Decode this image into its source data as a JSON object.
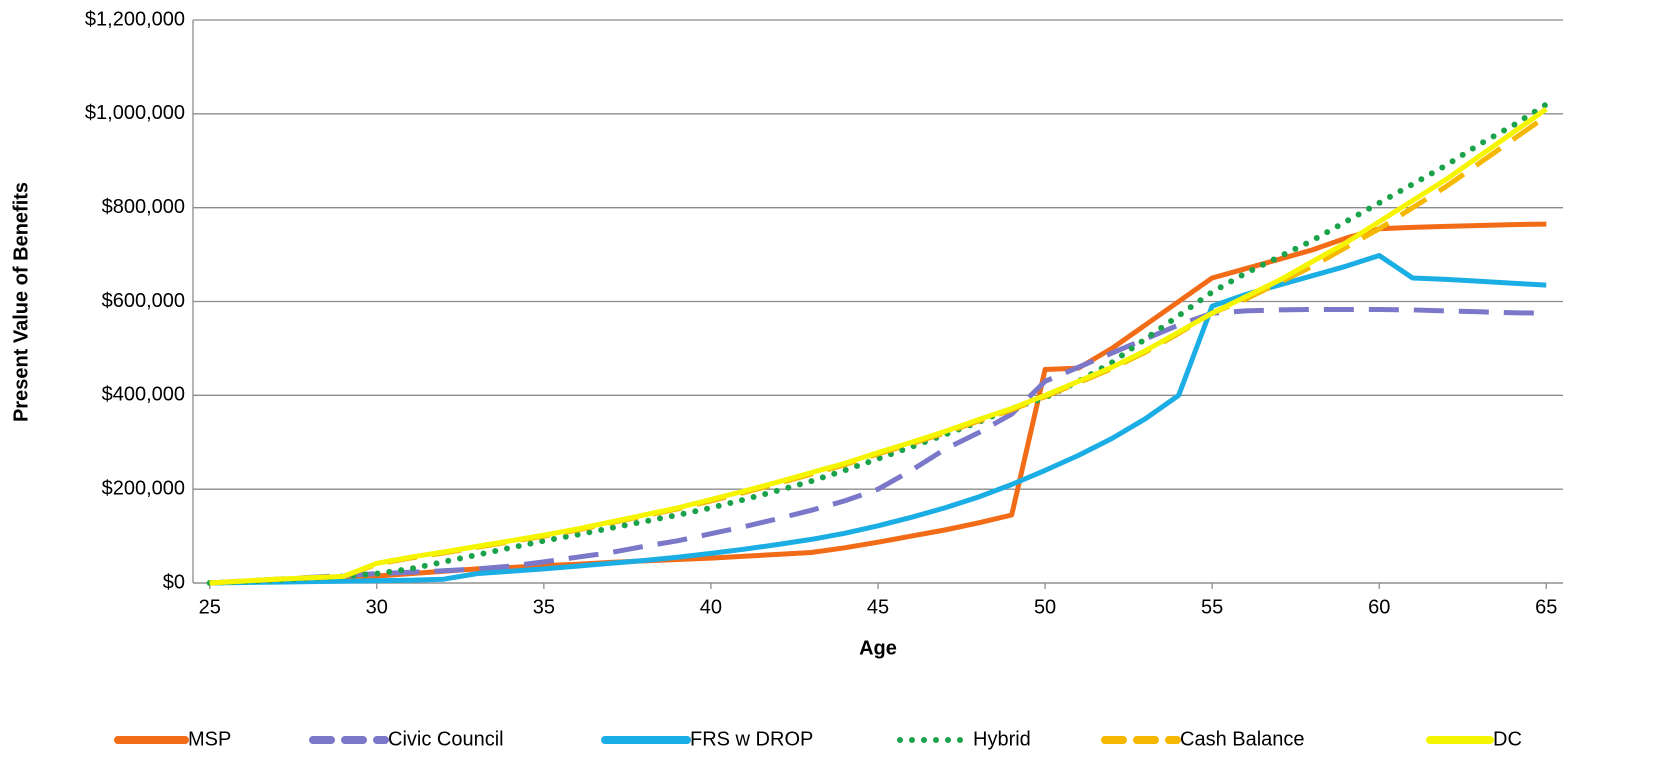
{
  "chart_data": {
    "type": "line",
    "x_label": "Age",
    "y_label": "Present Value of Benefits",
    "x": [
      25,
      26,
      27,
      28,
      29,
      30,
      31,
      32,
      33,
      34,
      35,
      36,
      37,
      38,
      39,
      40,
      41,
      42,
      43,
      44,
      45,
      46,
      47,
      48,
      49,
      50,
      51,
      52,
      53,
      54,
      55,
      56,
      57,
      58,
      59,
      60,
      61,
      62,
      63,
      64,
      65
    ],
    "xlim": [
      24.5,
      65.5
    ],
    "xticks": [
      25,
      30,
      35,
      40,
      45,
      50,
      55,
      60,
      65
    ],
    "ylim": [
      0,
      1200000
    ],
    "yticks": [
      {
        "value": 0,
        "label": "$0"
      },
      {
        "value": 200000,
        "label": "$200,000"
      },
      {
        "value": 400000,
        "label": "$400,000"
      },
      {
        "value": 600000,
        "label": "$600,000"
      },
      {
        "value": 800000,
        "label": "$800,000"
      },
      {
        "value": 1000000,
        "label": "$1,000,000"
      },
      {
        "value": 1200000,
        "label": "$1,200,000"
      }
    ],
    "grid": true,
    "legend": "bottom",
    "series": [
      {
        "name": "MSP",
        "color": "#f26b16",
        "dash": "solid",
        "values": [
          0,
          3000,
          6000,
          9000,
          12000,
          15000,
          20000,
          25000,
          30000,
          33000,
          37000,
          40000,
          44000,
          47000,
          50000,
          53000,
          57000,
          61000,
          65000,
          75000,
          87000,
          100000,
          113000,
          128000,
          145000,
          455000,
          458000,
          500000,
          550000,
          600000,
          650000,
          670000,
          690000,
          710000,
          735000,
          755000,
          758000,
          760000,
          762000,
          764000,
          765000
        ]
      },
      {
        "name": "Civic Council",
        "color": "#7b77c9",
        "dash": "dashed",
        "values": [
          0,
          4000,
          8000,
          12000,
          16000,
          20000,
          23000,
          26000,
          30000,
          36000,
          45000,
          55000,
          65000,
          78000,
          90000,
          105000,
          120000,
          137000,
          155000,
          175000,
          200000,
          240000,
          285000,
          320000,
          360000,
          430000,
          460000,
          490000,
          520000,
          550000,
          575000,
          580000,
          582000,
          583000,
          583000,
          583000,
          582000,
          580000,
          578000,
          576000,
          575000
        ]
      },
      {
        "name": "FRS w DROP",
        "color": "#1aaee5",
        "dash": "solid",
        "values": [
          0,
          1000,
          2000,
          3000,
          4000,
          5000,
          6000,
          8000,
          20000,
          25000,
          30000,
          36000,
          42000,
          48000,
          55000,
          63000,
          72000,
          82000,
          93000,
          106000,
          122000,
          140000,
          160000,
          183000,
          210000,
          240000,
          272000,
          308000,
          350000,
          400000,
          590000,
          615000,
          635000,
          655000,
          675000,
          698000,
          650000,
          647000,
          643000,
          639000,
          635000
        ]
      },
      {
        "name": "Hybrid",
        "color": "#1aa34a",
        "dash": "dotted",
        "values": [
          0,
          3000,
          6000,
          10000,
          14000,
          20000,
          30000,
          45000,
          60000,
          75000,
          90000,
          103000,
          117000,
          131000,
          145000,
          160000,
          178000,
          197000,
          217000,
          240000,
          265000,
          290000,
          316000,
          343000,
          372000,
          395000,
          430000,
          470000,
          520000,
          570000,
          620000,
          660000,
          695000,
          730000,
          770000,
          810000,
          850000,
          890000,
          935000,
          975000,
          1020000
        ]
      },
      {
        "name": "Cash Balance",
        "color": "#f5b700",
        "dash": "dashed",
        "values": [
          0,
          4000,
          8000,
          11000,
          14000,
          40000,
          53000,
          64000,
          76000,
          88000,
          100000,
          113000,
          128000,
          143000,
          158000,
          175000,
          193000,
          212000,
          232000,
          252000,
          275000,
          297000,
          320000,
          345000,
          369000,
          397000,
          427000,
          457000,
          492000,
          532000,
          575000,
          605000,
          640000,
          675000,
          715000,
          755000,
          800000,
          845000,
          895000,
          945000,
          995000
        ]
      },
      {
        "name": "DC",
        "color": "#f5f500",
        "dash": "solid",
        "values": [
          0,
          4000,
          8000,
          11000,
          14000,
          42000,
          55000,
          66000,
          78000,
          90000,
          102000,
          115000,
          130000,
          145000,
          160000,
          178000,
          196000,
          215000,
          235000,
          255000,
          278000,
          300000,
          323000,
          348000,
          372000,
          400000,
          430000,
          460000,
          495000,
          535000,
          575000,
          610000,
          645000,
          685000,
          725000,
          770000,
          815000,
          860000,
          910000,
          960000,
          1010000
        ]
      }
    ]
  }
}
